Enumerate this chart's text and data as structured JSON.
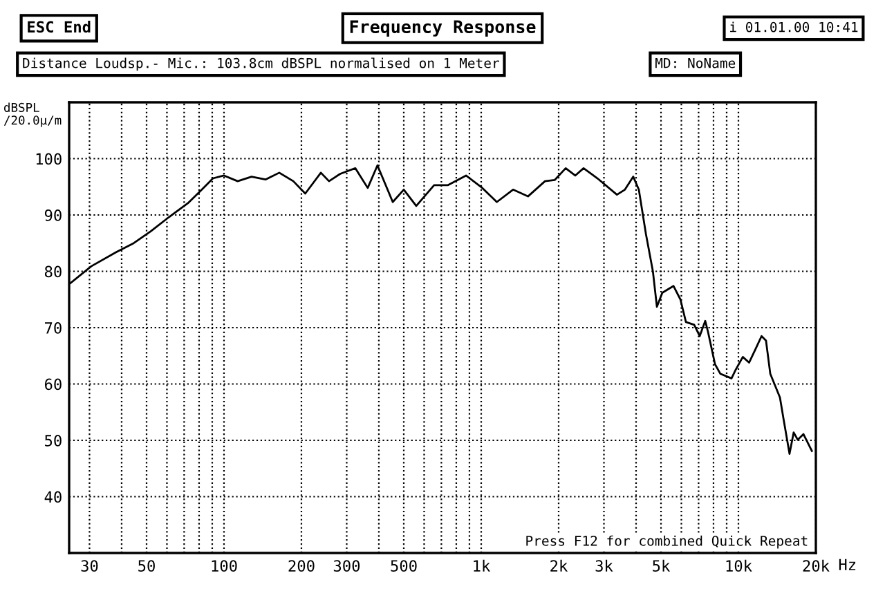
{
  "chart_data": {
    "type": "line",
    "title": "Frequency Response",
    "subtitle": "Distance Loudsp.- Mic.: 103.8cm dBSPL normalised on 1 Meter",
    "annotations": [
      "ESC End",
      "i 01.01.00 10:41",
      "MD: NoName",
      "Press F12 for combined Quick Repeat"
    ],
    "ylabel": "dBSPL\n/20.0µ/m",
    "log": "x",
    "grid": true,
    "marker": "none",
    "line_style": "solid",
    "xlim": [
      25,
      20000
    ],
    "ylim": [
      30,
      110
    ],
    "xticks": [
      30,
      {
        "value": 40,
        "label": null
      },
      50,
      {
        "value": 60,
        "label": null
      },
      {
        "value": 70,
        "label": null
      },
      {
        "value": 80,
        "label": null
      },
      {
        "value": 90,
        "label": null
      },
      100,
      200,
      300,
      {
        "value": 400,
        "label": null
      },
      500,
      {
        "value": 600,
        "label": null
      },
      {
        "value": 700,
        "label": null
      },
      {
        "value": 800,
        "label": null
      },
      {
        "value": 900,
        "label": null
      },
      {
        "value": 1000,
        "label": "1k"
      },
      {
        "value": 2000,
        "label": "2k"
      },
      {
        "value": 3000,
        "label": "3k"
      },
      {
        "value": 4000,
        "label": null
      },
      {
        "value": 5000,
        "label": "5k"
      },
      {
        "value": 6000,
        "label": null
      },
      {
        "value": 7000,
        "label": null
      },
      {
        "value": 8000,
        "label": null
      },
      {
        "value": 9000,
        "label": null
      },
      {
        "value": 10000,
        "label": "10k"
      },
      {
        "value": 20000,
        "label": "20k"
      }
    ],
    "xlabel": "Hz",
    "yticks": [
      40,
      50,
      60,
      70,
      80,
      90,
      100
    ],
    "series": [
      {
        "color": "#000000",
        "x": [
          25.3,
          30.5,
          38.1,
          44.2,
          51.9,
          61.0,
          72.4,
          82.0,
          90.6,
          100,
          113,
          128,
          145,
          164,
          186,
          207,
          238,
          256,
          283,
          324,
          362,
          395,
          453,
          500,
          559,
          656,
          743,
          873,
          1010,
          1150,
          1330,
          1520,
          1770,
          1930,
          2130,
          2320,
          2500,
          2830,
          3370,
          3620,
          3900,
          4100,
          4370,
          4650,
          4820,
          5060,
          5590,
          5950,
          6250,
          6730,
          7070,
          7430,
          7620,
          8110,
          8510,
          9400,
          9750,
          10400,
          11000,
          11600,
          12300,
          12800,
          13300,
          14500,
          15000,
          15800,
          16400,
          17000,
          17900,
          19300
        ],
        "values": [
          77.9,
          80.9,
          83.4,
          84.9,
          87.1,
          89.6,
          92.1,
          94.5,
          96.5,
          97.0,
          96.0,
          96.8,
          96.3,
          97.5,
          96.0,
          93.8,
          97.5,
          96.0,
          97.3,
          98.3,
          94.8,
          98.8,
          92.3,
          94.5,
          91.6,
          95.3,
          95.3,
          97.0,
          94.8,
          92.3,
          94.5,
          93.3,
          96.0,
          96.2,
          98.3,
          97.0,
          98.3,
          96.5,
          93.6,
          94.5,
          96.8,
          94.5,
          86.6,
          80.0,
          73.7,
          76.2,
          77.4,
          75.0,
          71.0,
          70.5,
          68.5,
          71.2,
          69.2,
          63.5,
          61.8,
          61.0,
          62.5,
          64.8,
          63.8,
          66.0,
          68.5,
          67.7,
          61.8,
          57.6,
          53.6,
          47.6,
          51.4,
          50.1,
          51.1,
          48.1
        ]
      }
    ]
  }
}
